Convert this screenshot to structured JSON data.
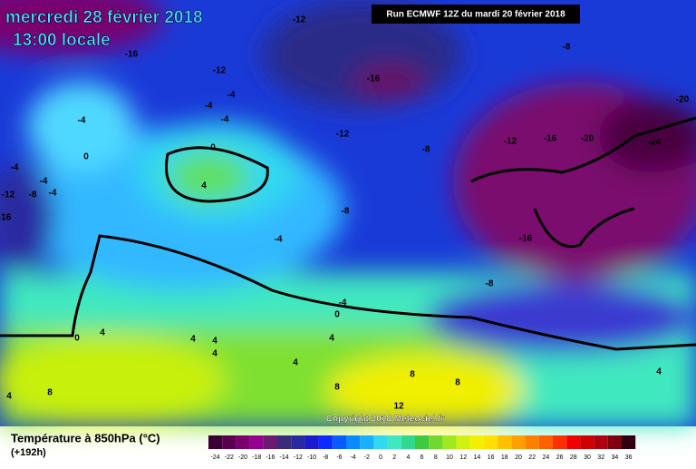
{
  "header": {
    "date": "mercredi 28 février 2018",
    "time": "13:00 locale",
    "run": "Run ECMWF 12Z du mardi 20 février 2018"
  },
  "copyright": "Copyright 2018 Meteociel.fr",
  "footer": {
    "title": "Température à 850hPa (°C)",
    "lead": "(+192h)"
  },
  "scale": {
    "values": [
      -24,
      -22,
      -20,
      -18,
      -16,
      -14,
      -12,
      -10,
      -8,
      -6,
      -4,
      -2,
      0,
      2,
      4,
      6,
      8,
      10,
      12,
      14,
      16,
      18,
      20,
      22,
      24,
      26,
      28,
      30,
      32,
      34,
      36
    ],
    "colors": [
      "#3a0033",
      "#5a0050",
      "#7a006e",
      "#960090",
      "#6a1a70",
      "#3a2a7a",
      "#2a2aa0",
      "#1a1ad0",
      "#0a2aff",
      "#0a5aff",
      "#0a8aff",
      "#1ab0ff",
      "#30d8f0",
      "#40e8c0",
      "#30d890",
      "#40c840",
      "#70d830",
      "#a0e820",
      "#d0f010",
      "#f0f000",
      "#ffe000",
      "#ffc000",
      "#ffa000",
      "#ff8000",
      "#ff6000",
      "#ff3000",
      "#f00000",
      "#d00000",
      "#b00010",
      "#800010",
      "#300010"
    ]
  },
  "contour_labels": [
    -12,
    -16,
    -12,
    -4,
    -4,
    -4,
    -16,
    -8,
    -20,
    -12,
    -12,
    -16,
    -20,
    -24,
    -8,
    -4,
    -4,
    0,
    -4,
    -8,
    -4,
    -12,
    -16,
    0,
    4,
    -8,
    -4,
    -16,
    -8,
    -4,
    0,
    0,
    4,
    4,
    4,
    4,
    4,
    4,
    8,
    8,
    8,
    8,
    4,
    12,
    4
  ]
}
